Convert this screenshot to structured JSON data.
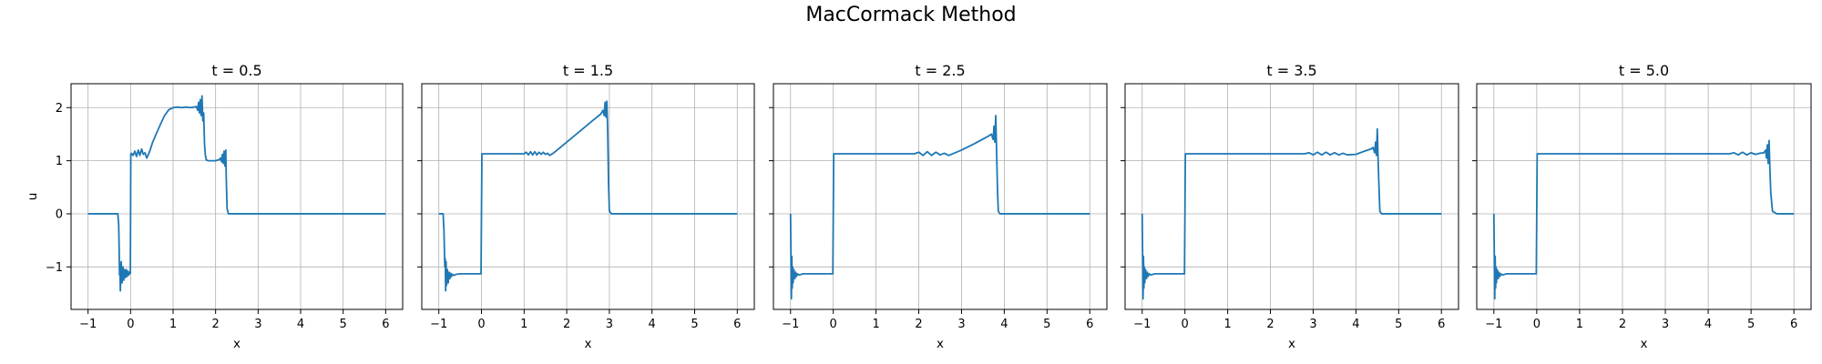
{
  "figure": {
    "title": "MacCormack Method"
  },
  "chart_data": [
    {
      "type": "line",
      "title": "t = 0.5",
      "xlabel": "x",
      "ylabel": "u",
      "xlim": [
        -1.4,
        6.4
      ],
      "ylim": [
        -1.8,
        2.45
      ],
      "xticks": [
        -1,
        0,
        1,
        2,
        3,
        4,
        5,
        6
      ],
      "yticks": [
        -1,
        0,
        1,
        2
      ],
      "grid": true,
      "series": [
        {
          "color": "#1f77b4",
          "x": [
            -1.0,
            -0.3,
            -0.28,
            -0.27,
            -0.26,
            -0.25,
            -0.24,
            -0.22,
            -0.2,
            -0.18,
            -0.16,
            -0.14,
            -0.12,
            -0.1,
            -0.08,
            -0.06,
            -0.04,
            -0.02,
            -0.005,
            0.005,
            0.02,
            0.06,
            0.1,
            0.14,
            0.18,
            0.22,
            0.26,
            0.3,
            0.34,
            0.38,
            0.42,
            0.46,
            0.52,
            0.6,
            0.7,
            0.8,
            0.9,
            1.0,
            1.1,
            1.2,
            1.3,
            1.4,
            1.5,
            1.55,
            1.58,
            1.6,
            1.62,
            1.64,
            1.66,
            1.68,
            1.7,
            1.72,
            1.74,
            1.76,
            1.78,
            1.82,
            1.9,
            2.0,
            2.08,
            2.12,
            2.14,
            2.16,
            2.18,
            2.2,
            2.22,
            2.24,
            2.25,
            2.27,
            2.3,
            3.0,
            4.0,
            5.0,
            6.0
          ],
          "y": [
            0.0,
            0.0,
            -0.2,
            -0.6,
            -1.15,
            -0.95,
            -1.45,
            -0.9,
            -1.3,
            -1.0,
            -1.25,
            -1.05,
            -1.2,
            -1.05,
            -1.18,
            -1.08,
            -1.15,
            -1.1,
            -1.12,
            1.12,
            1.14,
            1.1,
            1.18,
            1.08,
            1.2,
            1.1,
            1.22,
            1.12,
            1.15,
            1.05,
            1.12,
            1.2,
            1.35,
            1.5,
            1.68,
            1.85,
            1.96,
            2.0,
            2.01,
            2.0,
            2.01,
            2.0,
            2.01,
            2.02,
            1.95,
            2.1,
            1.9,
            2.15,
            1.85,
            2.22,
            1.75,
            1.9,
            1.3,
            1.1,
            1.02,
            1.0,
            1.0,
            1.0,
            1.02,
            1.05,
            0.98,
            1.12,
            0.95,
            1.18,
            0.9,
            1.2,
            0.7,
            0.1,
            0.0,
            0.0,
            0.0,
            0.0,
            0.0
          ]
        }
      ]
    },
    {
      "type": "line",
      "title": "t = 1.5",
      "xlabel": "x",
      "xlim": [
        -1.4,
        6.4
      ],
      "ylim": [
        -1.8,
        2.45
      ],
      "xticks": [
        -1,
        0,
        1,
        2,
        3,
        4,
        5,
        6
      ],
      "yticks": [
        -1,
        0,
        1,
        2
      ],
      "grid": true,
      "series": [
        {
          "color": "#1f77b4",
          "x": [
            -1.0,
            -0.9,
            -0.88,
            -0.86,
            -0.85,
            -0.84,
            -0.83,
            -0.82,
            -0.8,
            -0.78,
            -0.76,
            -0.74,
            -0.72,
            -0.7,
            -0.68,
            -0.64,
            -0.6,
            -0.5,
            -0.3,
            -0.1,
            -0.01,
            0.01,
            0.3,
            0.6,
            0.9,
            1.0,
            1.05,
            1.1,
            1.15,
            1.2,
            1.25,
            1.3,
            1.35,
            1.4,
            1.45,
            1.5,
            1.55,
            1.6,
            1.7,
            2.0,
            2.3,
            2.6,
            2.8,
            2.85,
            2.88,
            2.9,
            2.92,
            2.94,
            2.96,
            2.98,
            3.0,
            3.05,
            3.1,
            4.0,
            5.0,
            6.0
          ],
          "y": [
            0.0,
            0.0,
            -0.3,
            -1.0,
            -0.85,
            -1.45,
            -0.9,
            -1.35,
            -1.05,
            -1.3,
            -1.1,
            -1.22,
            -1.12,
            -1.18,
            -1.14,
            -1.16,
            -1.14,
            -1.13,
            -1.13,
            -1.13,
            -1.13,
            1.13,
            1.13,
            1.13,
            1.13,
            1.13,
            1.16,
            1.11,
            1.17,
            1.11,
            1.17,
            1.11,
            1.16,
            1.12,
            1.16,
            1.12,
            1.14,
            1.1,
            1.15,
            1.35,
            1.55,
            1.75,
            1.88,
            1.95,
            1.85,
            2.1,
            1.82,
            2.12,
            1.6,
            0.6,
            0.05,
            0.0,
            0.0,
            0.0,
            0.0,
            0.0
          ]
        }
      ]
    },
    {
      "type": "line",
      "title": "t = 2.5",
      "xlabel": "x",
      "xlim": [
        -1.4,
        6.4
      ],
      "ylim": [
        -1.8,
        2.45
      ],
      "xticks": [
        -1,
        0,
        1,
        2,
        3,
        4,
        5,
        6
      ],
      "yticks": [
        -1,
        0,
        1,
        2
      ],
      "grid": true,
      "series": [
        {
          "color": "#1f77b4",
          "x": [
            -1.0,
            -0.99,
            -0.98,
            -0.97,
            -0.96,
            -0.95,
            -0.94,
            -0.92,
            -0.9,
            -0.88,
            -0.86,
            -0.84,
            -0.8,
            -0.7,
            -0.5,
            -0.2,
            -0.01,
            0.01,
            0.5,
            1.0,
            1.5,
            1.9,
            2.0,
            2.1,
            2.2,
            2.3,
            2.4,
            2.5,
            2.6,
            2.7,
            3.0,
            3.3,
            3.6,
            3.7,
            3.74,
            3.76,
            3.78,
            3.8,
            3.82,
            3.84,
            3.86,
            3.9,
            4.0,
            5.0,
            6.0
          ],
          "y": [
            0.0,
            -0.8,
            -1.6,
            -0.8,
            -1.4,
            -1.0,
            -1.3,
            -1.05,
            -1.22,
            -1.1,
            -1.18,
            -1.13,
            -1.15,
            -1.13,
            -1.13,
            -1.13,
            -1.13,
            1.13,
            1.13,
            1.13,
            1.13,
            1.13,
            1.16,
            1.1,
            1.17,
            1.1,
            1.16,
            1.11,
            1.14,
            1.1,
            1.2,
            1.32,
            1.45,
            1.5,
            1.4,
            1.65,
            1.35,
            1.85,
            1.2,
            0.5,
            0.05,
            0.0,
            0.0,
            0.0,
            0.0
          ]
        }
      ]
    },
    {
      "type": "line",
      "title": "t = 3.5",
      "xlabel": "x",
      "xlim": [
        -1.4,
        6.4
      ],
      "ylim": [
        -1.8,
        2.45
      ],
      "xticks": [
        -1,
        0,
        1,
        2,
        3,
        4,
        5,
        6
      ],
      "yticks": [
        -1,
        0,
        1,
        2
      ],
      "grid": true,
      "series": [
        {
          "color": "#1f77b4",
          "x": [
            -1.0,
            -0.99,
            -0.98,
            -0.97,
            -0.96,
            -0.95,
            -0.94,
            -0.92,
            -0.9,
            -0.88,
            -0.86,
            -0.84,
            -0.8,
            -0.7,
            -0.5,
            -0.2,
            -0.01,
            0.01,
            0.5,
            1.0,
            2.0,
            2.8,
            2.9,
            3.0,
            3.1,
            3.2,
            3.3,
            3.4,
            3.5,
            3.6,
            3.7,
            3.8,
            4.0,
            4.2,
            4.35,
            4.4,
            4.44,
            4.46,
            4.48,
            4.5,
            4.52,
            4.54,
            4.56,
            4.6,
            4.7,
            5.0,
            6.0
          ],
          "y": [
            0.0,
            -0.8,
            -1.6,
            -0.8,
            -1.4,
            -1.0,
            -1.3,
            -1.05,
            -1.22,
            -1.1,
            -1.18,
            -1.13,
            -1.15,
            -1.13,
            -1.13,
            -1.13,
            -1.13,
            1.13,
            1.13,
            1.13,
            1.13,
            1.13,
            1.15,
            1.11,
            1.16,
            1.11,
            1.16,
            1.11,
            1.15,
            1.11,
            1.14,
            1.11,
            1.12,
            1.18,
            1.22,
            1.25,
            1.15,
            1.35,
            1.1,
            1.6,
            1.0,
            0.5,
            0.05,
            0.0,
            0.0,
            0.0,
            0.0
          ]
        }
      ]
    },
    {
      "type": "line",
      "title": "t = 5.0",
      "xlabel": "x",
      "xlim": [
        -1.4,
        6.4
      ],
      "ylim": [
        -1.8,
        2.45
      ],
      "xticks": [
        -1,
        0,
        1,
        2,
        3,
        4,
        5,
        6
      ],
      "yticks": [
        -1,
        0,
        1,
        2
      ],
      "grid": true,
      "series": [
        {
          "color": "#1f77b4",
          "x": [
            -1.0,
            -0.99,
            -0.98,
            -0.97,
            -0.96,
            -0.95,
            -0.94,
            -0.92,
            -0.9,
            -0.88,
            -0.86,
            -0.84,
            -0.8,
            -0.7,
            -0.5,
            -0.2,
            -0.01,
            0.01,
            1.0,
            2.0,
            3.0,
            4.0,
            4.5,
            4.6,
            4.7,
            4.8,
            4.9,
            5.0,
            5.1,
            5.2,
            5.3,
            5.34,
            5.36,
            5.38,
            5.4,
            5.42,
            5.44,
            5.46,
            5.5,
            5.6,
            6.0
          ],
          "y": [
            0.0,
            -0.8,
            -1.6,
            -0.8,
            -1.4,
            -1.0,
            -1.3,
            -1.05,
            -1.22,
            -1.1,
            -1.18,
            -1.13,
            -1.15,
            -1.13,
            -1.13,
            -1.13,
            -1.13,
            1.13,
            1.13,
            1.13,
            1.13,
            1.13,
            1.13,
            1.15,
            1.11,
            1.16,
            1.11,
            1.15,
            1.12,
            1.14,
            1.15,
            1.2,
            1.05,
            1.3,
            0.95,
            1.38,
            0.85,
            0.4,
            0.05,
            0.0,
            0.0
          ]
        }
      ]
    }
  ]
}
